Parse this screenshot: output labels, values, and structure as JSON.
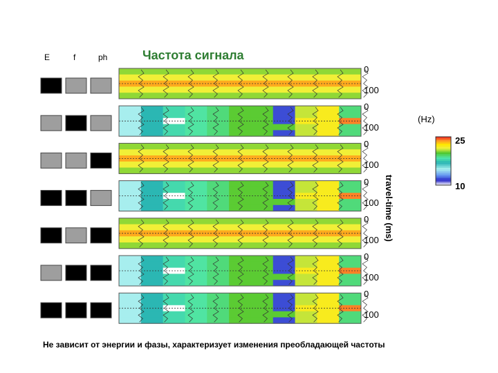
{
  "header": {
    "col_e": "E",
    "col_f": "f",
    "col_ph": "ph",
    "title": "Частота сигнала"
  },
  "indicator_colors": {
    "on": "#000000",
    "off": "#9e9e9e"
  },
  "chart_data": {
    "type": "heatmap",
    "title": "Частота сигнала",
    "ylabel": "travel-time (ms)",
    "colorbar": {
      "unit": "(Hz)",
      "max_label": "25",
      "min_label": "10",
      "range": [
        10,
        25
      ]
    },
    "ticks": {
      "top": "0",
      "bottom": "100"
    },
    "panels": [
      {
        "indicators": [
          "on",
          "off",
          "off"
        ],
        "pattern": "uniform"
      },
      {
        "indicators": [
          "off",
          "on",
          "off"
        ],
        "pattern": "varying"
      },
      {
        "indicators": [
          "off",
          "off",
          "on"
        ],
        "pattern": "uniform"
      },
      {
        "indicators": [
          "on",
          "on",
          "off"
        ],
        "pattern": "varying"
      },
      {
        "indicators": [
          "on",
          "off",
          "on"
        ],
        "pattern": "uniform"
      },
      {
        "indicators": [
          "off",
          "on",
          "on"
        ],
        "pattern": "varying"
      },
      {
        "indicators": [
          "on",
          "on",
          "on"
        ],
        "pattern": "varying"
      }
    ],
    "uniform_rows_hz": [
      20.5,
      21.5,
      23.5,
      21.5,
      20.5
    ],
    "varying_columns_hz": [
      [
        15,
        15,
        15,
        15,
        15
      ],
      [
        17,
        17,
        17,
        17,
        17
      ],
      [
        18,
        18,
        10,
        18,
        18
      ],
      [
        18.5,
        18.5,
        18.5,
        18.5,
        18.5
      ],
      [
        19,
        19,
        19,
        19,
        19
      ],
      [
        20,
        20,
        20,
        20,
        20
      ],
      [
        20,
        20,
        20,
        20,
        20
      ],
      [
        12,
        12,
        12,
        20,
        12
      ],
      [
        21,
        21,
        22,
        21,
        21
      ],
      [
        22,
        22,
        22,
        22,
        22
      ],
      [
        19,
        19,
        24,
        19,
        19
      ]
    ]
  },
  "caption": "Не зависит от энергии и фазы, характеризует  изменения преобладающей частоты"
}
